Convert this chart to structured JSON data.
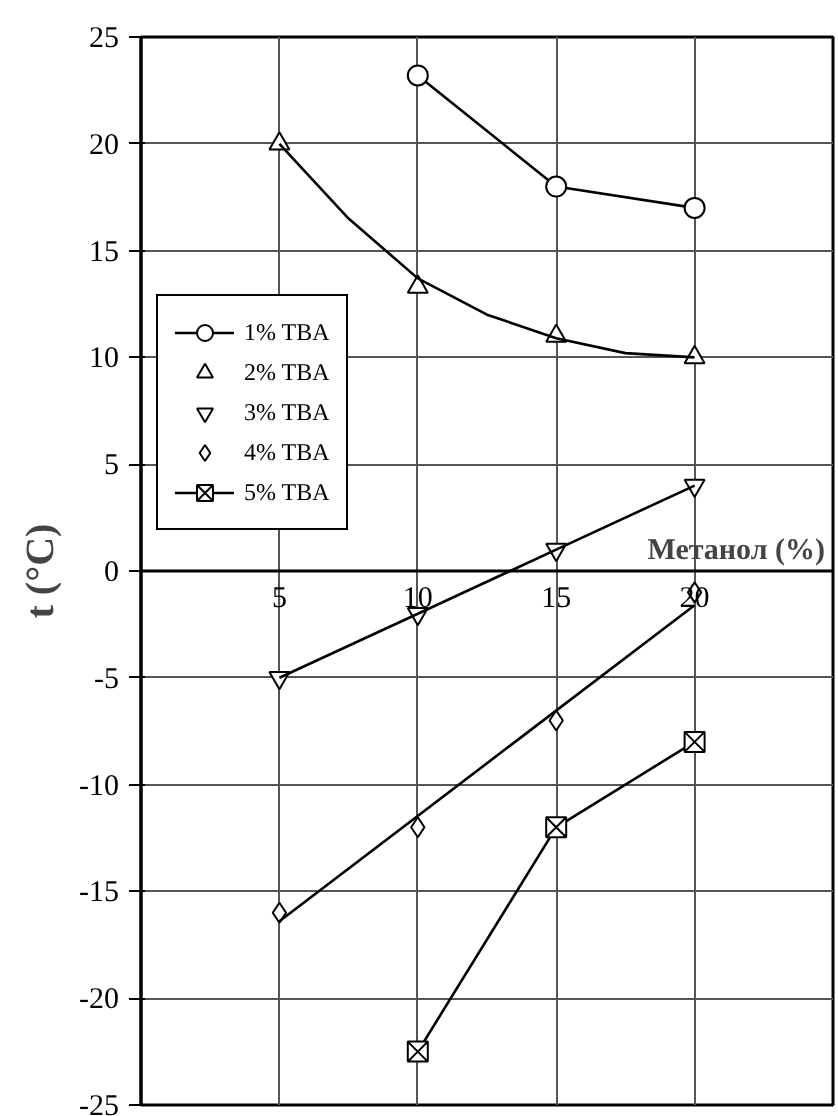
{
  "chart_data": {
    "type": "line",
    "xlabel": "Метанол (%)",
    "ylabel": "t (°C)",
    "xlim": [
      0,
      25
    ],
    "xticks": [
      5,
      10,
      15,
      20
    ],
    "ylim": [
      -25,
      25
    ],
    "yticks": [
      -25,
      -20,
      -15,
      -10,
      -5,
      0,
      5,
      10,
      15,
      20,
      25
    ],
    "grid": true,
    "legend": "left",
    "series": [
      {
        "name": "1% TBA",
        "color": "#000000",
        "marker": "circle",
        "line_style": "solid",
        "x": [
          10,
          15,
          20
        ],
        "values": [
          23.2,
          18,
          17
        ]
      },
      {
        "name": "2% TBA",
        "color": "#000000",
        "type": "scatter",
        "marker": "triangle",
        "x": [
          5,
          10,
          15,
          20
        ],
        "values": [
          20,
          13.3,
          11,
          10
        ]
      },
      {
        "name": "3% TBA",
        "color": "#000000",
        "type": "scatter",
        "marker": "triangle_down",
        "x": [
          5,
          10,
          15,
          20
        ],
        "values": [
          -5,
          -2,
          1,
          4
        ]
      },
      {
        "name": "4% TBA",
        "color": "#000000",
        "type": "scatter",
        "marker": "diamond",
        "x": [
          5,
          10,
          15,
          20
        ],
        "values": [
          -16,
          -12,
          -7,
          -1
        ]
      },
      {
        "name": "5% TBA",
        "color": "#000000",
        "marker": "cross",
        "line_style": "solid",
        "x": [
          10,
          15,
          20
        ],
        "values": [
          -22.5,
          -12,
          -8
        ]
      },
      {
        "color": "#000000",
        "marker": "none",
        "line_style": "solid",
        "x": [
          5,
          7.5,
          10,
          12.5,
          15,
          17.5,
          20
        ],
        "values": [
          20,
          16.5,
          13.7,
          12,
          10.9,
          10.2,
          10
        ]
      },
      {
        "color": "#000000",
        "marker": "none",
        "line_style": "solid",
        "x": [
          5,
          10,
          15,
          20
        ],
        "values": [
          -5,
          -2,
          1,
          4
        ]
      },
      {
        "color": "#000000",
        "marker": "none",
        "line_style": "solid",
        "x": [
          5,
          20
        ],
        "values": [
          -16.4,
          -1.6
        ]
      }
    ]
  }
}
